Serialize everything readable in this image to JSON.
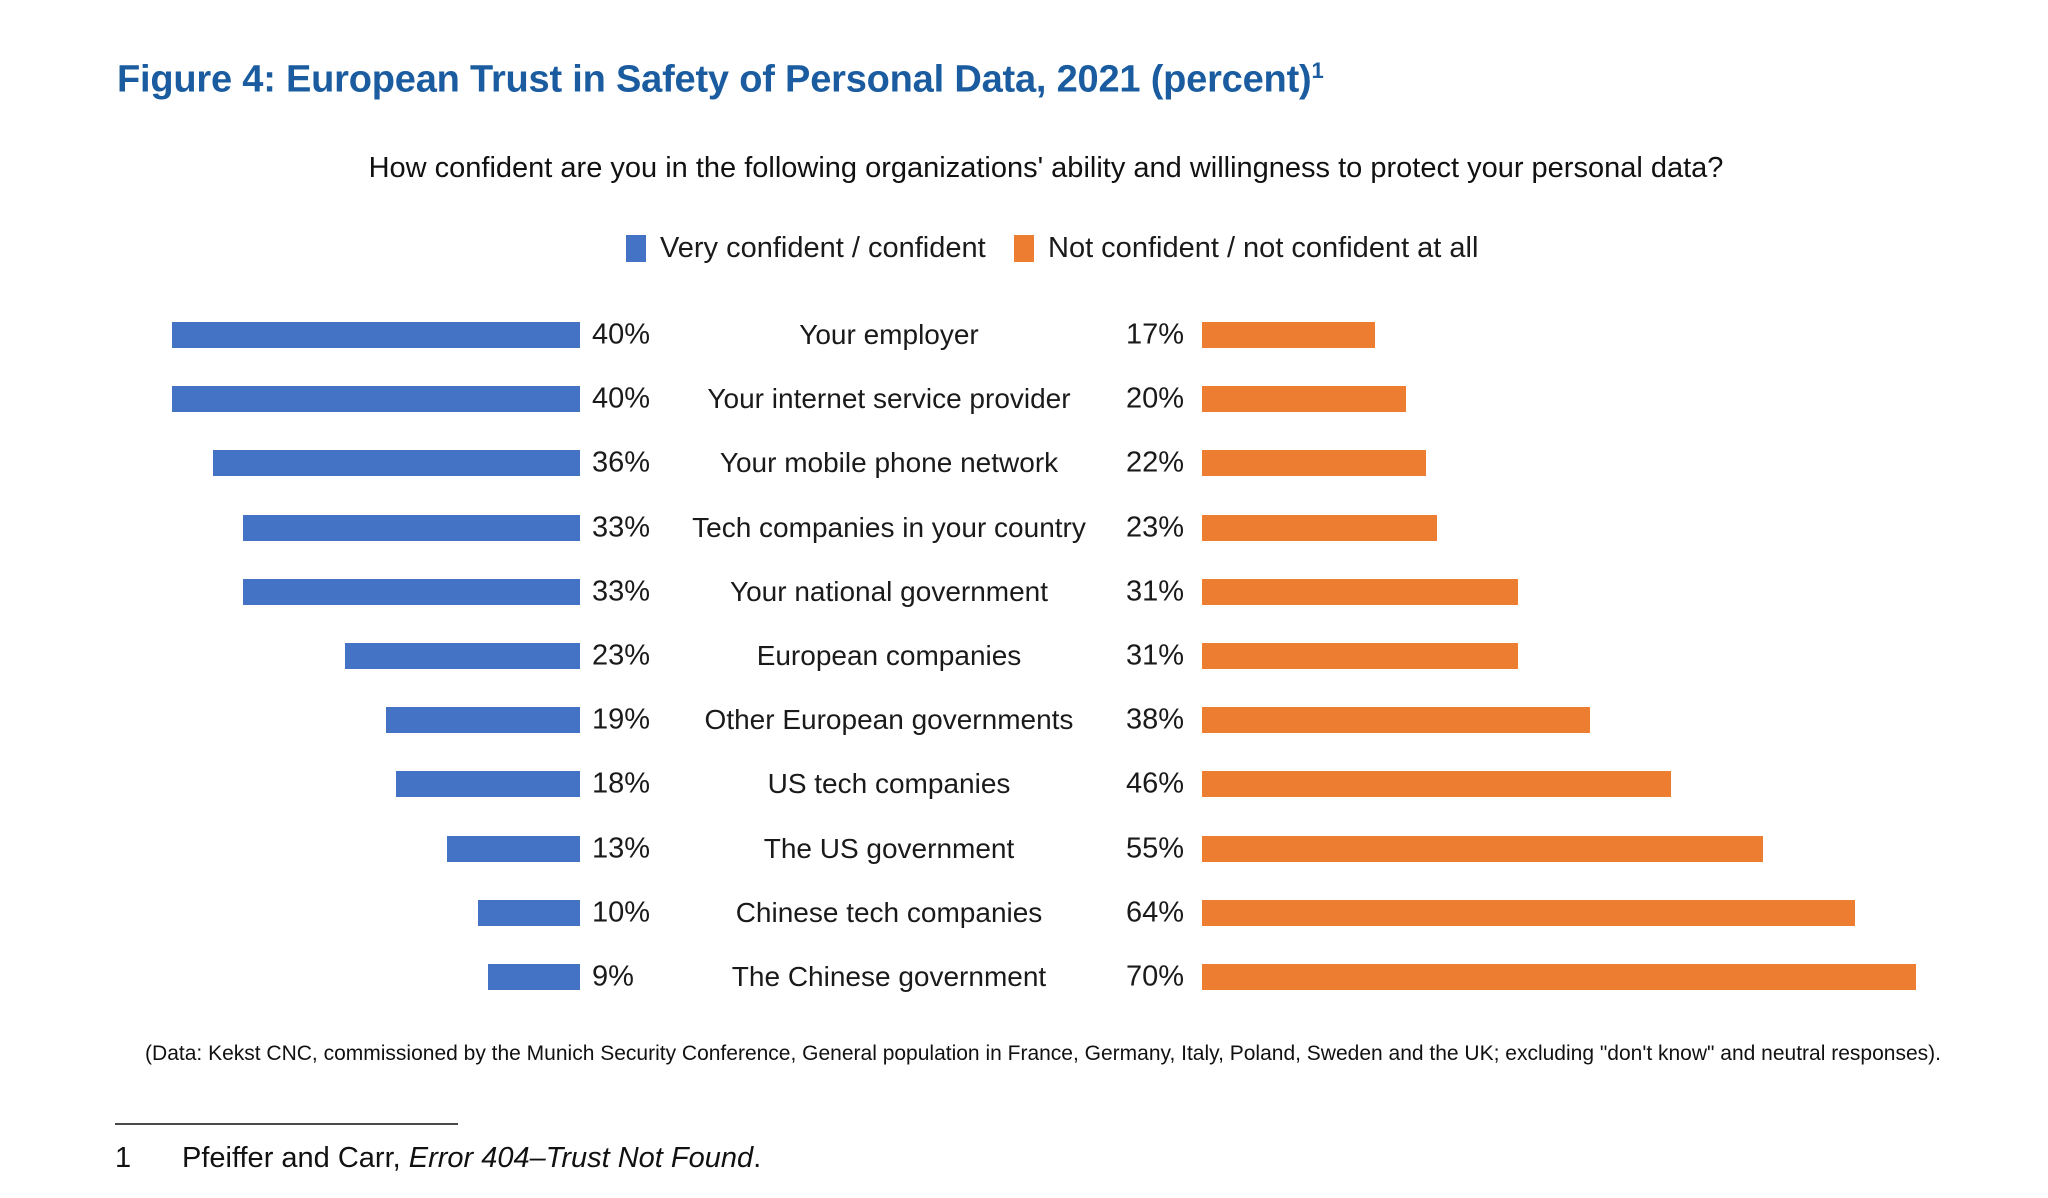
{
  "figure": {
    "title": "Figure 4: European Trust in Safety of Personal Data, 2021 (percent)",
    "title_footnote_marker": "1",
    "question": "How confident are you in the following organizations' ability and willingness to protect your personal data?",
    "legend": [
      {
        "label": "Very confident / confident",
        "color": "#4472c4"
      },
      {
        "label": "Not confident / not confident at all",
        "color": "#ed7d31"
      }
    ],
    "source_note": "(Data: Kekst CNC, commissioned by the Munich Security Conference, General population in France, Germany, Italy, Poland, Sweden and the UK; excluding \"don't know\" and neutral responses).",
    "footnote": {
      "marker": "1",
      "text_prefix": "Pfeiffer and Carr, ",
      "text_italic": "Error 404–Trust Not Found",
      "text_suffix": "."
    }
  },
  "chart_data": {
    "type": "bar",
    "orientation": "diverging-horizontal",
    "unit": "percent",
    "value_label_format": "{value}%",
    "categories": [
      "Your employer",
      "Your internet service provider",
      "Your mobile phone network",
      "Tech companies in your country",
      "Your national government",
      "European companies",
      "Other European governments",
      "US tech companies",
      "The US government",
      "Chinese tech companies",
      "The Chinese government"
    ],
    "series": [
      {
        "name": "Very confident / confident",
        "side": "left",
        "color": "#4472c4",
        "values": [
          40,
          40,
          36,
          33,
          33,
          23,
          19,
          18,
          13,
          10,
          9
        ]
      },
      {
        "name": "Not confident / not confident at all",
        "side": "right",
        "color": "#ed7d31",
        "values": [
          17,
          20,
          22,
          23,
          31,
          31,
          38,
          46,
          55,
          64,
          70
        ]
      }
    ],
    "xlim_each_side": [
      0,
      75
    ],
    "grid": false,
    "legend_position": "top"
  }
}
